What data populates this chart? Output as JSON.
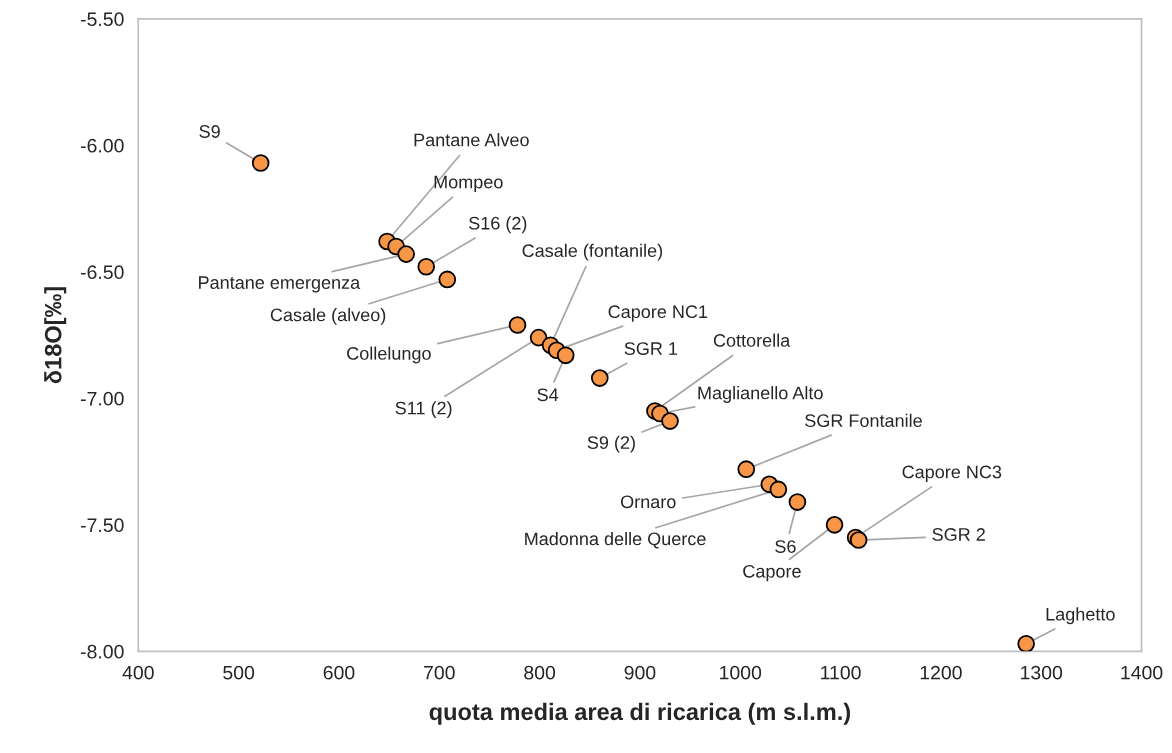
{
  "chart_data": {
    "type": "scatter",
    "xlabel": "quota media area di ricarica (m s.l.m.)",
    "ylabel": "δ18O[‰]",
    "xlim": [
      400,
      1400
    ],
    "xticks": [
      400,
      500,
      600,
      700,
      800,
      900,
      1000,
      1100,
      1200,
      1300,
      1400
    ],
    "ylim": [
      -8.0,
      -5.5
    ],
    "yticks": [
      {
        "value": -8.0,
        "label": "-8.00"
      },
      {
        "value": -7.5,
        "label": "-7.50"
      },
      {
        "value": -7.0,
        "label": "-7.00"
      },
      {
        "value": -6.5,
        "label": "-6.50"
      },
      {
        "value": -6.0,
        "label": "-6.00"
      },
      {
        "value": -5.5,
        "label": "-5.50"
      }
    ],
    "grid": false,
    "marker": "circle",
    "series": [
      {
        "color": "#f79646",
        "x": [
          522,
          648,
          657,
          667,
          687,
          708,
          778,
          799,
          811,
          817,
          826,
          860,
          915,
          920,
          930,
          1006,
          1029,
          1038,
          1057,
          1094,
          1115,
          1118,
          1285
        ],
        "values": [
          -6.07,
          -6.38,
          -6.4,
          -6.43,
          -6.48,
          -6.53,
          -6.71,
          -6.76,
          -6.79,
          -6.81,
          -6.83,
          -6.92,
          -7.05,
          -7.06,
          -7.09,
          -7.28,
          -7.34,
          -7.36,
          -7.41,
          -7.5,
          -7.55,
          -7.56,
          -7.97
        ]
      }
    ],
    "annotations": [
      {
        "text": "S9",
        "x": 522,
        "y": -6.07
      },
      {
        "text": "Pantane Alveo",
        "x": 648,
        "y": -6.38
      },
      {
        "text": "Mompeo",
        "x": 657,
        "y": -6.4
      },
      {
        "text": "Pantane emergenza",
        "x": 667,
        "y": -6.43
      },
      {
        "text": "S16 (2)",
        "x": 687,
        "y": -6.48
      },
      {
        "text": "Casale (alveo)",
        "x": 708,
        "y": -6.53
      },
      {
        "text": "Collelungo",
        "x": 778,
        "y": -6.71
      },
      {
        "text": "S11 (2)",
        "x": 799,
        "y": -6.76
      },
      {
        "text": "Casale (fontanile)",
        "x": 811,
        "y": -6.79
      },
      {
        "text": "Capore NC1",
        "x": 817,
        "y": -6.81
      },
      {
        "text": "S4",
        "x": 826,
        "y": -6.83
      },
      {
        "text": "SGR 1",
        "x": 860,
        "y": -6.92
      },
      {
        "text": "Cottorella",
        "x": 915,
        "y": -7.05
      },
      {
        "text": "Maglianello Alto",
        "x": 920,
        "y": -7.06
      },
      {
        "text": "S9 (2)",
        "x": 930,
        "y": -7.09
      },
      {
        "text": "SGR Fontanile",
        "x": 1006,
        "y": -7.28
      },
      {
        "text": "Ornaro",
        "x": 1029,
        "y": -7.34
      },
      {
        "text": "Madonna delle Querce",
        "x": 1038,
        "y": -7.36
      },
      {
        "text": "S6",
        "x": 1057,
        "y": -7.41
      },
      {
        "text": "Capore",
        "x": 1094,
        "y": -7.5
      },
      {
        "text": "Capore NC3",
        "x": 1115,
        "y": -7.55
      },
      {
        "text": "SGR 2",
        "x": 1118,
        "y": -7.56
      },
      {
        "text": "Laghetto",
        "x": 1285,
        "y": -7.97
      }
    ]
  }
}
